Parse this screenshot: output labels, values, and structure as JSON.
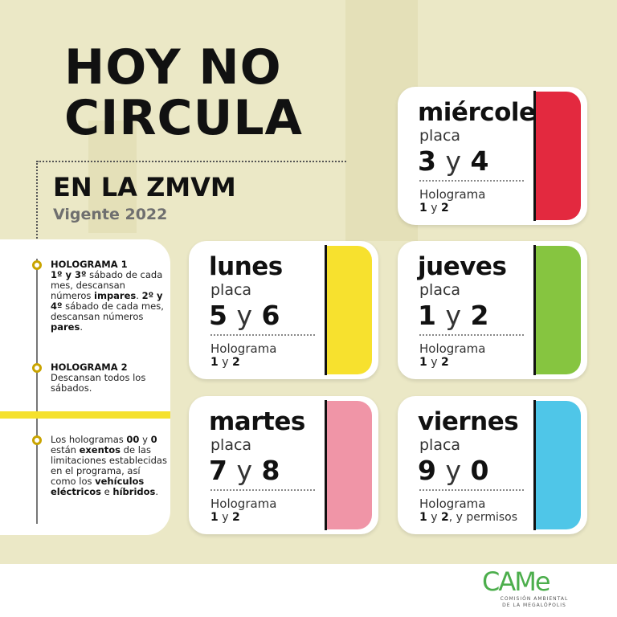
{
  "header": {
    "title_line1": "HOY NO",
    "title_line2": "CIRCULA",
    "subtitle": "EN LA ZMVM",
    "validity": "Vigente 2022"
  },
  "notes": [
    {
      "title": "HOLOGRAMA 1",
      "parts": [
        [
          "1º y 3º",
          true
        ],
        [
          " sábado de cada mes, descansan números ",
          false
        ],
        [
          "impares",
          true
        ],
        [
          ". ",
          false
        ],
        [
          "2º y 4º",
          true
        ],
        [
          " sábado de cada mes, descansan números ",
          false
        ],
        [
          "pares",
          true
        ],
        [
          ".",
          false
        ]
      ]
    },
    {
      "title": "HOLOGRAMA 2",
      "parts": [
        [
          "Descansan todos los sábados.",
          false
        ]
      ]
    },
    {
      "title": "",
      "parts": [
        [
          "Los hologramas ",
          false
        ],
        [
          "00",
          true
        ],
        [
          " y ",
          false
        ],
        [
          "0",
          true
        ],
        [
          " están ",
          false
        ],
        [
          "exentos",
          true
        ],
        [
          " de las limitaciones establecidas en el programa, así como los ",
          false
        ],
        [
          "vehículos eléctricos",
          true
        ],
        [
          " e ",
          false
        ],
        [
          "híbridos",
          true
        ],
        [
          ".",
          false
        ]
      ]
    }
  ],
  "cards": [
    {
      "day": "miércoles",
      "placa_label": "placa",
      "n1": "3",
      "y": "y",
      "n2": "4",
      "holo_label": "Holograma",
      "h1": "1",
      "hy": " y ",
      "h2": "2",
      "extra": "",
      "color": "#e3293f"
    },
    {
      "day": "lunes",
      "placa_label": "placa",
      "n1": "5",
      "y": "y",
      "n2": "6",
      "holo_label": "Holograma",
      "h1": "1",
      "hy": " y ",
      "h2": "2",
      "extra": "",
      "color": "#f7e12e"
    },
    {
      "day": "jueves",
      "placa_label": "placa",
      "n1": "1",
      "y": "y",
      "n2": "2",
      "holo_label": "Holograma",
      "h1": "1",
      "hy": " y ",
      "h2": "2",
      "extra": "",
      "color": "#86c540"
    },
    {
      "day": "martes",
      "placa_label": "placa",
      "n1": "7",
      "y": "y",
      "n2": "8",
      "holo_label": "Holograma",
      "h1": "1",
      "hy": " y ",
      "h2": "2",
      "extra": "",
      "color": "#f095a7"
    },
    {
      "day": "viernes",
      "placa_label": "placa",
      "n1": "9",
      "y": "y",
      "n2": "0",
      "holo_label": "Holograma",
      "h1": "1",
      "hy": " y ",
      "h2": "2",
      "extra": ", y permisos",
      "color": "#4fc6e8"
    }
  ],
  "footer": {
    "logo": "CAMe",
    "org_line1": "COMISIÓN AMBIENTAL",
    "org_line2": "DE LA MEGALÓPOLIS"
  }
}
